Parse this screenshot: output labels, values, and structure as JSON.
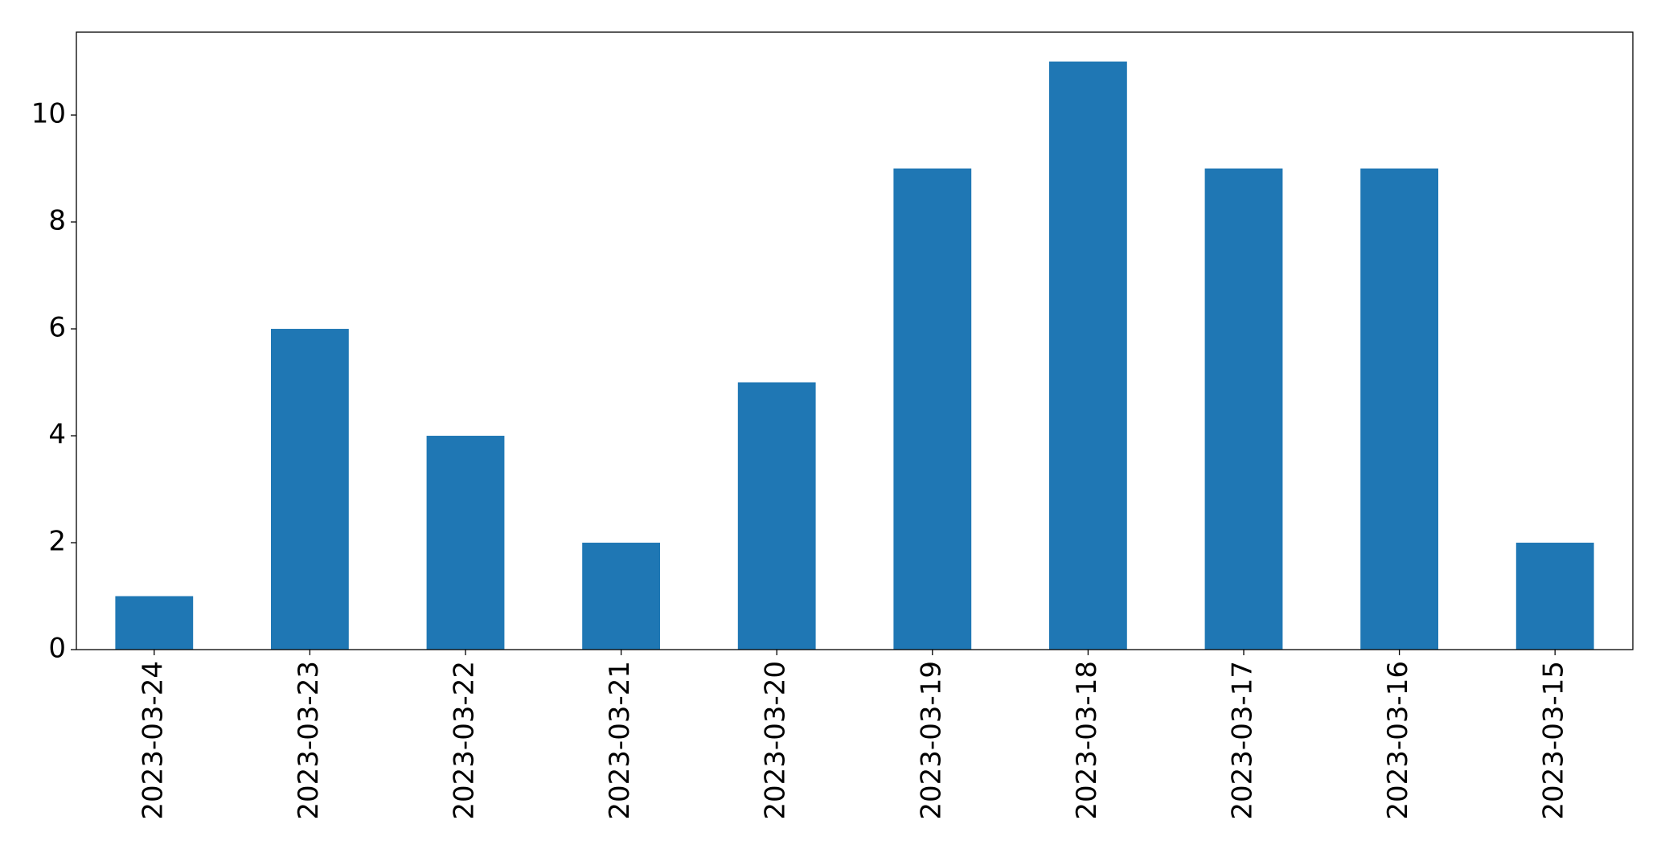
{
  "chart_data": {
    "type": "bar",
    "categories": [
      "2023-03-24",
      "2023-03-23",
      "2023-03-22",
      "2023-03-21",
      "2023-03-20",
      "2023-03-19",
      "2023-03-18",
      "2023-03-17",
      "2023-03-16",
      "2023-03-15"
    ],
    "values": [
      1,
      6,
      4,
      2,
      5,
      9,
      11,
      9,
      9,
      2
    ],
    "color": "#1f77b4",
    "ylim": [
      0,
      11.55
    ],
    "yticks": [
      0,
      2,
      4,
      6,
      8,
      10
    ],
    "grid": false
  }
}
